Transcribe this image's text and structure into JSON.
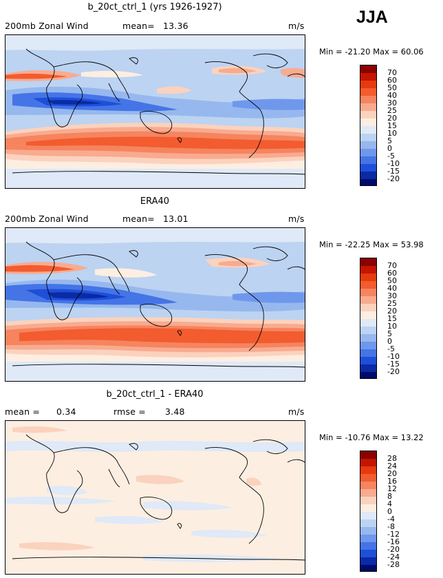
{
  "season": "JJA",
  "panels": [
    {
      "title": "b_20ct_ctrl_1 (yrs 1926-1927)",
      "left_label": "200mb Zonal Wind",
      "stat_label": "mean=",
      "stat_value": "13.36",
      "units": "m/s",
      "minmax": "Min = -21.20 Max = 60.06",
      "colorbar_labels": [
        "70",
        "60",
        "50",
        "40",
        "30",
        "25",
        "20",
        "15",
        "10",
        "5",
        "0",
        "-5",
        "-10",
        "-15",
        "-20"
      ]
    },
    {
      "title": "ERA40",
      "left_label": "200mb Zonal Wind",
      "stat_label": "mean=",
      "stat_value": "13.01",
      "units": "m/s",
      "minmax": "Min = -22.25 Max = 53.98",
      "colorbar_labels": [
        "70",
        "60",
        "50",
        "40",
        "30",
        "25",
        "20",
        "15",
        "10",
        "5",
        "0",
        "-5",
        "-10",
        "-15",
        "-20"
      ]
    },
    {
      "title": "b_20ct_ctrl_1 - ERA40",
      "left_label": "mean =",
      "stat_label": "rmse =",
      "left_value": "0.34",
      "stat_value": "3.48",
      "units": "m/s",
      "minmax": "Min = -10.76 Max = 13.22",
      "colorbar_labels": [
        "28",
        "24",
        "20",
        "16",
        "12",
        "8",
        "4",
        "0",
        "-4",
        "-8",
        "-12",
        "-16",
        "-20",
        "-24",
        "-28"
      ]
    }
  ],
  "colors": {
    "scale": [
      "#8b0000",
      "#c41500",
      "#e63a0f",
      "#f25c2f",
      "#f6845f",
      "#f8ab8f",
      "#fbd2bd",
      "#fdeee2",
      "#dfe9f7",
      "#bcd3f2",
      "#96b8ee",
      "#6f98ec",
      "#4474e6",
      "#1f4fd8",
      "#0a2aa6",
      "#000a6b"
    ]
  }
}
